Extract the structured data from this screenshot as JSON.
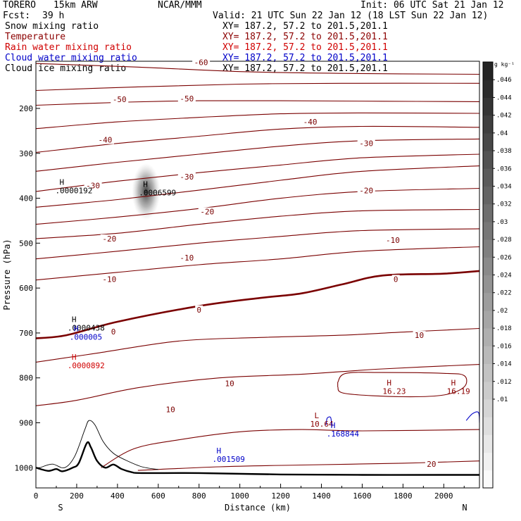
{
  "header": {
    "model": "TORERO",
    "resolution": "15km ARW",
    "org": "NCAR/MMM",
    "init": "Init: 06 UTC Sat 21 Jan 12",
    "fcst_label": "Fcst:",
    "fcst_value": "39 h",
    "valid": "Valid: 21 UTC Sun 22 Jan 12 (18 LST Sun 22 Jan 12)"
  },
  "fields": [
    {
      "name": "Snow mixing ratio",
      "xy": "XY= 187.2, 57.2 to 201.5,201.1",
      "color": "#000000"
    },
    {
      "name": "Temperature",
      "xy": "XY= 187.2, 57.2 to 201.5,201.1",
      "color": "#8b0000"
    },
    {
      "name": "Rain water mixing ratio",
      "xy": "XY= 187.2, 57.2 to 201.5,201.1",
      "color": "#d00000"
    },
    {
      "name": "Cloud water mixing ratio",
      "xy": "XY= 187.2, 57.2 to 201.5,201.1",
      "color": "#0000c8"
    },
    {
      "name": "Cloud ice mixing ratio",
      "xy": "XY= 187.2, 57.2 to 201.5,201.1",
      "color": "#000000"
    }
  ],
  "chart_data": {
    "type": "contour-cross-section",
    "xlabel": "Distance (km)",
    "ylabel": "Pressure (hPa)",
    "x_ticks": [
      0,
      200,
      400,
      600,
      800,
      1000,
      1200,
      1400,
      1600,
      1800,
      2000
    ],
    "xlim": [
      0,
      2175
    ],
    "y_ticks": [
      200,
      300,
      400,
      500,
      600,
      700,
      800,
      900,
      1000
    ],
    "ylim": [
      1045,
      95
    ],
    "left_end_label": "S",
    "right_end_label": "N",
    "temperature_isotherms": [
      {
        "value": -60,
        "points": [
          [
            0,
            100
          ],
          [
            500,
            108
          ],
          [
            1000,
            118
          ],
          [
            1500,
            122
          ],
          [
            2175,
            124
          ]
        ]
      },
      {
        "value": -55,
        "points": [
          [
            0,
            160
          ],
          [
            500,
            152
          ],
          [
            1000,
            146
          ],
          [
            1500,
            144
          ],
          [
            2175,
            144
          ]
        ]
      },
      {
        "value": -50,
        "points": [
          [
            0,
            193
          ],
          [
            450,
            186
          ],
          [
            800,
            183
          ],
          [
            1200,
            183
          ],
          [
            1700,
            184
          ],
          [
            2175,
            185
          ]
        ]
      },
      {
        "value": -45,
        "points": [
          [
            0,
            245
          ],
          [
            400,
            230
          ],
          [
            800,
            220
          ],
          [
            1200,
            212
          ],
          [
            1600,
            210
          ],
          [
            2175,
            211
          ]
        ]
      },
      {
        "value": -40,
        "points": [
          [
            0,
            298
          ],
          [
            400,
            278
          ],
          [
            800,
            262
          ],
          [
            1200,
            246
          ],
          [
            1600,
            240
          ],
          [
            2175,
            242
          ]
        ]
      },
      {
        "value": -35,
        "points": [
          [
            0,
            340
          ],
          [
            400,
            320
          ],
          [
            800,
            302
          ],
          [
            1200,
            284
          ],
          [
            1600,
            272
          ],
          [
            2175,
            268
          ]
        ]
      },
      {
        "value": -30,
        "points": [
          [
            0,
            385
          ],
          [
            400,
            362
          ],
          [
            800,
            343
          ],
          [
            1200,
            326
          ],
          [
            1600,
            310
          ],
          [
            2175,
            302
          ]
        ]
      },
      {
        "value": -25,
        "points": [
          [
            0,
            420
          ],
          [
            400,
            403
          ],
          [
            800,
            382
          ],
          [
            1200,
            360
          ],
          [
            1600,
            340
          ],
          [
            2175,
            328
          ]
        ]
      },
      {
        "value": -20,
        "points": [
          [
            0,
            458
          ],
          [
            400,
            442
          ],
          [
            800,
            423
          ],
          [
            1200,
            400
          ],
          [
            1600,
            385
          ],
          [
            2175,
            378
          ]
        ]
      },
      {
        "value": -15,
        "points": [
          [
            0,
            490
          ],
          [
            400,
            478
          ],
          [
            800,
            458
          ],
          [
            1200,
            440
          ],
          [
            1600,
            428
          ],
          [
            2175,
            425
          ]
        ]
      },
      {
        "value": -10,
        "points": [
          [
            0,
            535
          ],
          [
            400,
            518
          ],
          [
            800,
            500
          ],
          [
            1200,
            485
          ],
          [
            1600,
            472
          ],
          [
            2175,
            468
          ]
        ]
      },
      {
        "value": -5,
        "points": [
          [
            0,
            582
          ],
          [
            400,
            565
          ],
          [
            800,
            548
          ],
          [
            1200,
            535
          ],
          [
            1600,
            518
          ],
          [
            2175,
            508
          ]
        ]
      },
      {
        "value": 0,
        "points": [
          [
            0,
            712
          ],
          [
            150,
            705
          ],
          [
            400,
            675
          ],
          [
            800,
            640
          ],
          [
            1100,
            622
          ],
          [
            1300,
            612
          ],
          [
            1500,
            592
          ],
          [
            1700,
            572
          ],
          [
            2000,
            568
          ],
          [
            2175,
            562
          ]
        ]
      },
      {
        "value": 5,
        "points": [
          [
            0,
            765
          ],
          [
            300,
            745
          ],
          [
            700,
            718
          ],
          [
            1100,
            710
          ],
          [
            1500,
            705
          ],
          [
            1800,
            698
          ],
          [
            2175,
            690
          ]
        ]
      },
      {
        "value": 10,
        "points": [
          [
            0,
            862
          ],
          [
            200,
            850
          ],
          [
            500,
            822
          ],
          [
            900,
            800
          ],
          [
            1300,
            792
          ],
          [
            1700,
            780
          ],
          [
            2175,
            770
          ]
        ]
      },
      {
        "value": 15,
        "points": [
          [
            320,
            1000
          ],
          [
            480,
            958
          ],
          [
            700,
            938
          ],
          [
            1000,
            920
          ],
          [
            1300,
            915
          ],
          [
            1600,
            918
          ],
          [
            2175,
            915
          ]
        ]
      },
      {
        "value": 20,
        "points": [
          [
            500,
            1006
          ],
          [
            900,
            998
          ],
          [
            1300,
            994
          ],
          [
            1800,
            990
          ],
          [
            2175,
            985
          ]
        ]
      }
    ],
    "isotherm_labels": [
      {
        "text": "-60",
        "x": 810,
        "y": 97
      },
      {
        "text": "-50",
        "x": 410,
        "y": 180
      },
      {
        "text": "-50",
        "x": 740,
        "y": 178
      },
      {
        "text": "-40",
        "x": 340,
        "y": 270
      },
      {
        "text": "-40",
        "x": 1345,
        "y": 230
      },
      {
        "text": "-30",
        "x": 280,
        "y": 372
      },
      {
        "text": "-30",
        "x": 740,
        "y": 352
      },
      {
        "text": "-30",
        "x": 1620,
        "y": 278
      },
      {
        "text": "-20",
        "x": 360,
        "y": 490
      },
      {
        "text": "-20",
        "x": 840,
        "y": 430
      },
      {
        "text": "-20",
        "x": 1620,
        "y": 383
      },
      {
        "text": "-10",
        "x": 360,
        "y": 580
      },
      {
        "text": "-10",
        "x": 740,
        "y": 532
      },
      {
        "text": "-10",
        "x": 1750,
        "y": 493
      },
      {
        "text": "0",
        "x": 380,
        "y": 697
      },
      {
        "text": "0",
        "x": 800,
        "y": 648
      },
      {
        "text": "0",
        "x": 1765,
        "y": 580
      },
      {
        "text": "10",
        "x": 660,
        "y": 870
      },
      {
        "text": "10",
        "x": 950,
        "y": 812
      },
      {
        "text": "10",
        "x": 1880,
        "y": 705
      },
      {
        "text": "20",
        "x": 1940,
        "y": 992
      }
    ],
    "warm_pocket": {
      "points": [
        [
          1480,
          810
        ],
        [
          1520,
          790
        ],
        [
          1700,
          788
        ],
        [
          2000,
          790
        ],
        [
          2100,
          795
        ],
        [
          2100,
          820
        ],
        [
          2000,
          838
        ],
        [
          1800,
          842
        ],
        [
          1520,
          835
        ],
        [
          1480,
          820
        ]
      ]
    },
    "terrain": {
      "points": [
        [
          0,
          1000
        ],
        [
          60,
          1007
        ],
        [
          100,
          1003
        ],
        [
          130,
          1008
        ],
        [
          180,
          1000
        ],
        [
          210,
          990
        ],
        [
          250,
          945
        ],
        [
          270,
          955
        ],
        [
          300,
          985
        ],
        [
          340,
          1000
        ],
        [
          380,
          993
        ],
        [
          420,
          1003
        ],
        [
          470,
          1010
        ],
        [
          520,
          1012
        ],
        [
          800,
          1012
        ],
        [
          1200,
          1015
        ],
        [
          1600,
          1016
        ],
        [
          2000,
          1016
        ],
        [
          2175,
          1016
        ]
      ]
    },
    "snow_contour": {
      "points": [
        [
          20,
          1000
        ],
        [
          80,
          992
        ],
        [
          140,
          1000
        ],
        [
          190,
          975
        ],
        [
          240,
          915
        ],
        [
          260,
          895
        ],
        [
          290,
          905
        ],
        [
          330,
          942
        ],
        [
          380,
          968
        ],
        [
          440,
          983
        ],
        [
          520,
          998
        ],
        [
          600,
          1004
        ]
      ]
    },
    "cloud_water_contours": [
      {
        "points": [
          [
            1423,
            905
          ],
          [
            1428,
            890
          ],
          [
            1445,
            888
          ],
          [
            1450,
            905
          ]
        ]
      },
      {
        "points": [
          [
            2110,
            895
          ],
          [
            2140,
            880
          ],
          [
            2170,
            877
          ],
          [
            2175,
            900
          ]
        ]
      }
    ],
    "extrema_labels": [
      {
        "symbol": "H",
        "value": ".0000192",
        "x": 150,
        "y": 370,
        "color": "#000000",
        "field": "Snow mixing ratio"
      },
      {
        "symbol": "H",
        "value": ".0006599",
        "x": 560,
        "y": 375,
        "color": "#000000",
        "field": "Cloud ice mixing ratio"
      },
      {
        "symbol": "H",
        "value": ".0000438",
        "x": 210,
        "y": 676,
        "color": "#000000",
        "field": "Snow mixing ratio"
      },
      {
        "symbol": "H",
        "value": ".000005",
        "x": 220,
        "y": 696,
        "color": "#0000c8",
        "field": "Cloud water mixing ratio"
      },
      {
        "symbol": "H",
        "value": ".0000892",
        "x": 210,
        "y": 760,
        "color": "#d00000",
        "field": "Rain water mixing ratio"
      },
      {
        "symbol": "H",
        "value": "16.23",
        "x": 1755,
        "y": 817,
        "color": "#8b0000",
        "field": "Temperature"
      },
      {
        "symbol": "H",
        "value": "16.19",
        "x": 2070,
        "y": 817,
        "color": "#8b0000",
        "field": "Temperature"
      },
      {
        "symbol": "L",
        "value": "10.64",
        "x": 1400,
        "y": 890,
        "color": "#8b0000",
        "field": "Temperature"
      },
      {
        "symbol": "H",
        "value": ".168844",
        "x": 1480,
        "y": 912,
        "color": "#0000c8",
        "field": "Cloud water mixing ratio"
      },
      {
        "symbol": "H",
        "value": ".001509",
        "x": 920,
        "y": 968,
        "color": "#0000c8",
        "field": "Cloud water mixing ratio"
      }
    ],
    "colorbar": {
      "unit": "g kg⁻¹",
      "min": 0.0,
      "max": 0.048,
      "step": 0.002,
      "tick_labels": [
        ".01",
        ".012",
        ".014",
        ".016",
        ".018",
        ".02",
        ".022",
        ".024",
        ".026",
        ".028",
        ".03",
        ".032",
        ".034",
        ".036",
        ".038",
        ".04",
        ".042",
        ".044",
        ".046"
      ],
      "tick_values": [
        0.01,
        0.012,
        0.014,
        0.016,
        0.018,
        0.02,
        0.022,
        0.024,
        0.026,
        0.028,
        0.03,
        0.032,
        0.034,
        0.036,
        0.038,
        0.04,
        0.042,
        0.044,
        0.046
      ]
    }
  }
}
